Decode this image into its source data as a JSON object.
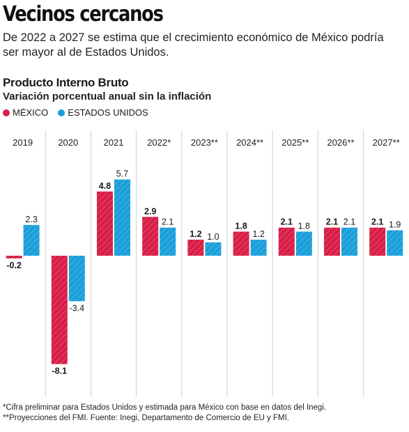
{
  "header": {
    "title": "Vecinos cercanos",
    "subtitle": "De 2022 a 2027 se estima que el crecimiento económico de México podría ser mayor al de Estados Unidos."
  },
  "chart_heading": "Producto Interno Bruto",
  "chart_subheading": "Variación porcentual anual sin la inflación",
  "legend": [
    {
      "label": "MÉXICO",
      "color": "#d81e47"
    },
    {
      "label": "ESTADOS UNIDOS",
      "color": "#1a9fd9"
    }
  ],
  "chart_data": {
    "type": "bar",
    "categories": [
      "2019",
      "2020",
      "2021",
      "2022*",
      "2023**",
      "2024**",
      "2025**",
      "2026**",
      "2027**"
    ],
    "series": [
      {
        "name": "MÉXICO",
        "color": "#d81e47",
        "values": [
          -0.2,
          -8.1,
          4.8,
          2.9,
          1.2,
          1.8,
          2.1,
          2.1,
          2.1
        ],
        "labels": [
          "-0.2",
          "-8.1",
          "4.8",
          "2.9",
          "1.2",
          "1.8",
          "2.1",
          "2.1",
          "2.1"
        ]
      },
      {
        "name": "ESTADOS UNIDOS",
        "color": "#1a9fd9",
        "values": [
          2.3,
          -3.4,
          5.7,
          2.1,
          1.0,
          1.2,
          1.8,
          2.1,
          1.9
        ],
        "labels": [
          "2.3",
          "-3.4",
          "5.7",
          "2.1",
          "1.0",
          "1.2",
          "1.8",
          "2.1",
          "1.9"
        ]
      }
    ],
    "ylim": [
      -8.1,
      5.7
    ],
    "grid": false,
    "legend_position": "top-left"
  },
  "footnotes": [
    "*Cifra preliminar para Estados Unidos y estimada para México con base en datos del Inegi.",
    "**Proyecciones del FMI. Fuente: Inegi, Departamento de Comercio de EU y FMI."
  ]
}
